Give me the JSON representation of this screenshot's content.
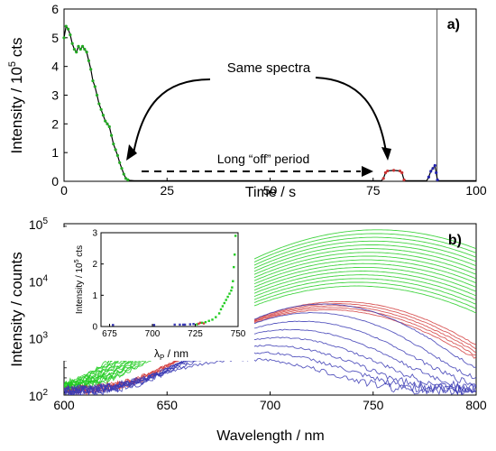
{
  "chart_data": [
    {
      "panel": "a)",
      "type": "line",
      "xlabel": "Time / s",
      "ylabel": "Intensity / 10",
      "ylabel_sup": "5",
      "ylabel_tail": " cts",
      "xlim": [
        0,
        100
      ],
      "ylim": [
        0,
        6
      ],
      "x_ticks": [
        0,
        25,
        50,
        75,
        100
      ],
      "y_ticks": [
        0,
        1,
        2,
        3,
        4,
        5,
        6
      ],
      "grid": false,
      "annotations": {
        "same_spectra": "Same spectra",
        "off_period": "Long “off” period"
      },
      "vertical_line_x": 90.5,
      "series": [
        {
          "color": "#000000",
          "points": [
            [
              0,
              5.0
            ],
            [
              0.5,
              5.4
            ],
            [
              1,
              5.3
            ],
            [
              1.5,
              5.1
            ],
            [
              2,
              4.8
            ],
            [
              2.5,
              4.6
            ],
            [
              3,
              4.5
            ],
            [
              3.5,
              4.7
            ],
            [
              4,
              4.6
            ],
            [
              4.5,
              4.7
            ],
            [
              5,
              4.6
            ],
            [
              5.5,
              4.5
            ],
            [
              6,
              4.2
            ],
            [
              6.5,
              3.9
            ],
            [
              7,
              3.5
            ],
            [
              7.5,
              3.3
            ],
            [
              8,
              3.0
            ],
            [
              8.5,
              2.7
            ],
            [
              9,
              2.5
            ],
            [
              9.5,
              2.3
            ],
            [
              10,
              2.1
            ],
            [
              10.5,
              2.0
            ],
            [
              11,
              1.9
            ],
            [
              11.5,
              1.6
            ],
            [
              12,
              1.3
            ],
            [
              12.5,
              1.1
            ],
            [
              13,
              0.9
            ],
            [
              13.5,
              0.65
            ],
            [
              14,
              0.45
            ],
            [
              14.5,
              0.25
            ],
            [
              15,
              0.1
            ],
            [
              15.5,
              0.05
            ],
            [
              16,
              0.03
            ],
            [
              17,
              0.02
            ],
            [
              30,
              0.02
            ],
            [
              50,
              0.02
            ],
            [
              70,
              0.02
            ],
            [
              77,
              0.02
            ],
            [
              77.5,
              0.1
            ],
            [
              78,
              0.3
            ],
            [
              78.5,
              0.36
            ],
            [
              80,
              0.38
            ],
            [
              81.5,
              0.36
            ],
            [
              82,
              0.3
            ],
            [
              82.5,
              0.05
            ],
            [
              83,
              0.02
            ],
            [
              88,
              0.02
            ],
            [
              88.5,
              0.15
            ],
            [
              89,
              0.35
            ],
            [
              89.5,
              0.45
            ],
            [
              90,
              0.55
            ],
            [
              90.3,
              0.3
            ],
            [
              90.6,
              0.05
            ],
            [
              91,
              0.02
            ],
            [
              100,
              0.02
            ]
          ]
        }
      ],
      "markers": [
        {
          "color": "#22aa22",
          "x_range": [
            0,
            15.5
          ]
        },
        {
          "color": "#c83232",
          "x_range": [
            77.5,
            82.5
          ]
        },
        {
          "color": "#2222aa",
          "x_range": [
            88.5,
            90.6
          ]
        }
      ]
    },
    {
      "panel": "b)",
      "type": "line",
      "xlabel": "Wavelength / nm",
      "ylabel": "Intensity / counts",
      "xlim": [
        600,
        800
      ],
      "ylim": [
        100,
        100000
      ],
      "y_scale": "log",
      "x_ticks": [
        600,
        650,
        700,
        750,
        800
      ],
      "y_ticks": [
        {
          "value": 100,
          "base": "10",
          "exp": "2"
        },
        {
          "value": 1000,
          "base": "10",
          "exp": "3"
        },
        {
          "value": 10000,
          "base": "10",
          "exp": "4"
        },
        {
          "value": 100000,
          "base": "10",
          "exp": "5"
        }
      ],
      "grid": false,
      "series_groups": [
        {
          "color": "#22cc22",
          "peak_wavelength": [
            742,
            752
          ],
          "peak_intensity_range": [
            8000,
            78000
          ],
          "count": 16,
          "width": 55
        },
        {
          "color": "#d23c3c",
          "peak_wavelength": [
            728,
            734
          ],
          "peak_intensity_range": [
            3000,
            4200
          ],
          "count": 5,
          "width": 48
        },
        {
          "color": "#3a3ab4",
          "peak_wavelength": [
            680,
            726
          ],
          "peak_intensity_range": [
            300,
            3800
          ],
          "count": 8,
          "width": 42
        }
      ],
      "inset": {
        "type": "scatter",
        "xlabel": "λ",
        "xlabel_sub": "P",
        "xlabel_tail": " / nm",
        "ylabel": "Intensity / 10",
        "ylabel_sup": "5",
        "ylabel_tail": " cts",
        "xlim": [
          670,
          750
        ],
        "ylim": [
          0,
          3
        ],
        "x_ticks": [
          675,
          700,
          725,
          750
        ],
        "y_ticks": [
          0,
          1,
          2,
          3
        ],
        "points": [
          {
            "x": 677,
            "y": 0.05,
            "color": "#3a3ab4"
          },
          {
            "x": 701,
            "y": 0.05,
            "color": "#3a3ab4"
          },
          {
            "x": 713,
            "y": 0.06,
            "color": "#3a3ab4"
          },
          {
            "x": 716,
            "y": 0.06,
            "color": "#3a3ab4"
          },
          {
            "x": 718,
            "y": 0.06,
            "color": "#3a3ab4"
          },
          {
            "x": 719,
            "y": 0.06,
            "color": "#3a3ab4"
          },
          {
            "x": 722,
            "y": 0.07,
            "color": "#3a3ab4"
          },
          {
            "x": 724,
            "y": 0.08,
            "color": "#3a3ab4"
          },
          {
            "x": 726,
            "y": 0.07,
            "color": "#22cc22"
          },
          {
            "x": 727,
            "y": 0.09,
            "color": "#d23c3c"
          },
          {
            "x": 728,
            "y": 0.12,
            "color": "#d23c3c"
          },
          {
            "x": 729,
            "y": 0.12,
            "color": "#22cc22"
          },
          {
            "x": 730,
            "y": 0.1,
            "color": "#d23c3c"
          },
          {
            "x": 731,
            "y": 0.14,
            "color": "#22cc22"
          },
          {
            "x": 733,
            "y": 0.18,
            "color": "#22cc22"
          },
          {
            "x": 735,
            "y": 0.22,
            "color": "#22cc22"
          },
          {
            "x": 737,
            "y": 0.3,
            "color": "#22cc22"
          },
          {
            "x": 739,
            "y": 0.42,
            "color": "#22cc22"
          },
          {
            "x": 740,
            "y": 0.55,
            "color": "#22cc22"
          },
          {
            "x": 741,
            "y": 0.65,
            "color": "#22cc22"
          },
          {
            "x": 742,
            "y": 0.75,
            "color": "#22cc22"
          },
          {
            "x": 743,
            "y": 0.85,
            "color": "#22cc22"
          },
          {
            "x": 744,
            "y": 0.95,
            "color": "#22cc22"
          },
          {
            "x": 745,
            "y": 1.05,
            "color": "#22cc22"
          },
          {
            "x": 746,
            "y": 1.15,
            "color": "#22cc22"
          },
          {
            "x": 746.5,
            "y": 1.25,
            "color": "#22cc22"
          },
          {
            "x": 747,
            "y": 1.45,
            "color": "#22cc22"
          },
          {
            "x": 747.5,
            "y": 1.9,
            "color": "#22cc22"
          },
          {
            "x": 748,
            "y": 2.3,
            "color": "#22cc22"
          },
          {
            "x": 748.5,
            "y": 2.9,
            "color": "#22cc22"
          }
        ]
      }
    }
  ]
}
